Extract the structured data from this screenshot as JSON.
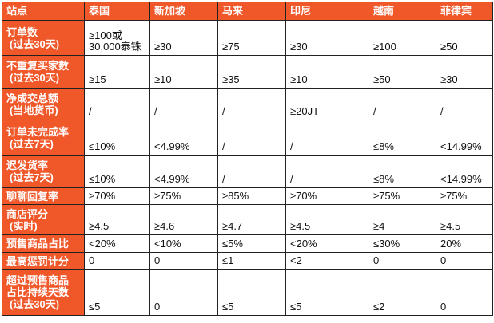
{
  "table": {
    "header": [
      "站点",
      "泰国",
      "新加坡",
      "马来",
      "印尼",
      "越南",
      "菲律宾"
    ],
    "rows": [
      {
        "label": [
          "订单数",
          "(过去30天)"
        ],
        "values": [
          [
            "≥100或",
            "30,000泰铢"
          ],
          "≥30",
          "≥75",
          "≥30",
          "≥100",
          "≥50"
        ]
      },
      {
        "label": [
          "不重复买家数",
          "(过去30天)"
        ],
        "values": [
          "≥15",
          "≥10",
          "≥35",
          "≥10",
          "≥50",
          "≥30"
        ]
      },
      {
        "label": [
          "净成交总额",
          "(当地货币)"
        ],
        "values": [
          "/",
          "/",
          "/",
          "≥20JT",
          "/",
          "/"
        ]
      },
      {
        "label": [
          "订单未完成率",
          "(过去7天)"
        ],
        "values": [
          "≤10%",
          "<4.99%",
          "/",
          "/",
          "≤8%",
          "<14.99%"
        ]
      },
      {
        "label": [
          "迟发货率",
          "(过去7天)"
        ],
        "values": [
          "≤10%",
          "<4.99%",
          "/",
          "/",
          "≤8%",
          "<14.99%"
        ]
      },
      {
        "label": [
          "聊聊回复率"
        ],
        "values": [
          "≥70%",
          "≥75%",
          "≥85%",
          "≥70%",
          "≥75%",
          "≥75%"
        ]
      },
      {
        "label": [
          "商店评分",
          "(实时)"
        ],
        "values": [
          "≥4.5",
          "≥4.6",
          "≥4.7",
          "≥4.5",
          "≥4",
          "≥4.5"
        ]
      },
      {
        "label": [
          "预售商品占比"
        ],
        "values": [
          "<20%",
          "<10%",
          "≤5%",
          "<20%",
          "≤30%",
          "20%"
        ]
      },
      {
        "label": [
          "最高惩罚计分"
        ],
        "values": [
          "0",
          "0",
          "≤1",
          "<2",
          "0",
          "0"
        ]
      },
      {
        "label": [
          "超过预售商品",
          "占比持续天数",
          "(过去30天)"
        ],
        "values": [
          "≤5",
          "0",
          "≤5",
          "≤5",
          "≤2",
          "0"
        ]
      }
    ]
  },
  "colors": {
    "header_bg": "#f0582a",
    "header_text": "#ffffff",
    "border": "#222222"
  }
}
